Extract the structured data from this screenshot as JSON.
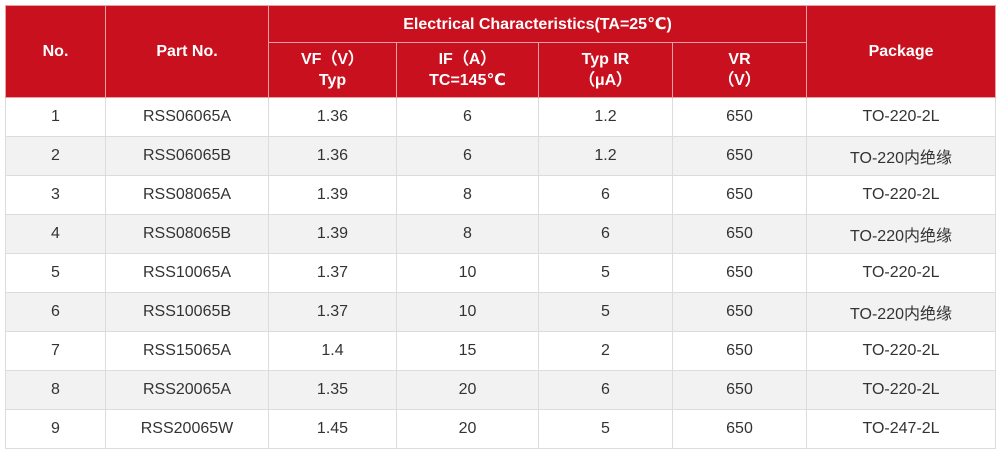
{
  "table": {
    "header": {
      "no": "No.",
      "part_no": "Part No.",
      "group": "Electrical Characteristics(TA=25℃)",
      "package": "Package",
      "sub": [
        [
          "VF（V）",
          "Typ"
        ],
        [
          "IF（A）",
          "TC=145℃"
        ],
        [
          "Typ IR",
          "（μA）"
        ],
        [
          "VR",
          "（V）"
        ]
      ]
    },
    "rows": [
      [
        "1",
        "RSS06065A",
        "1.36",
        "6",
        "1.2",
        "650",
        "TO-220-2L"
      ],
      [
        "2",
        "RSS06065B",
        "1.36",
        "6",
        "1.2",
        "650",
        "TO-220内绝缘"
      ],
      [
        "3",
        "RSS08065A",
        "1.39",
        "8",
        "6",
        "650",
        "TO-220-2L"
      ],
      [
        "4",
        "RSS08065B",
        "1.39",
        "8",
        "6",
        "650",
        "TO-220内绝缘"
      ],
      [
        "5",
        "RSS10065A",
        "1.37",
        "10",
        "5",
        "650",
        "TO-220-2L"
      ],
      [
        "6",
        "RSS10065B",
        "1.37",
        "10",
        "5",
        "650",
        "TO-220内绝缘"
      ],
      [
        "7",
        "RSS15065A",
        "1.4",
        "15",
        "2",
        "650",
        "TO-220-2L"
      ],
      [
        "8",
        "RSS20065A",
        "1.35",
        "20",
        "6",
        "650",
        "TO-220-2L"
      ],
      [
        "9",
        "RSS20065W",
        "1.45",
        "20",
        "5",
        "650",
        "TO-247-2L"
      ]
    ]
  }
}
